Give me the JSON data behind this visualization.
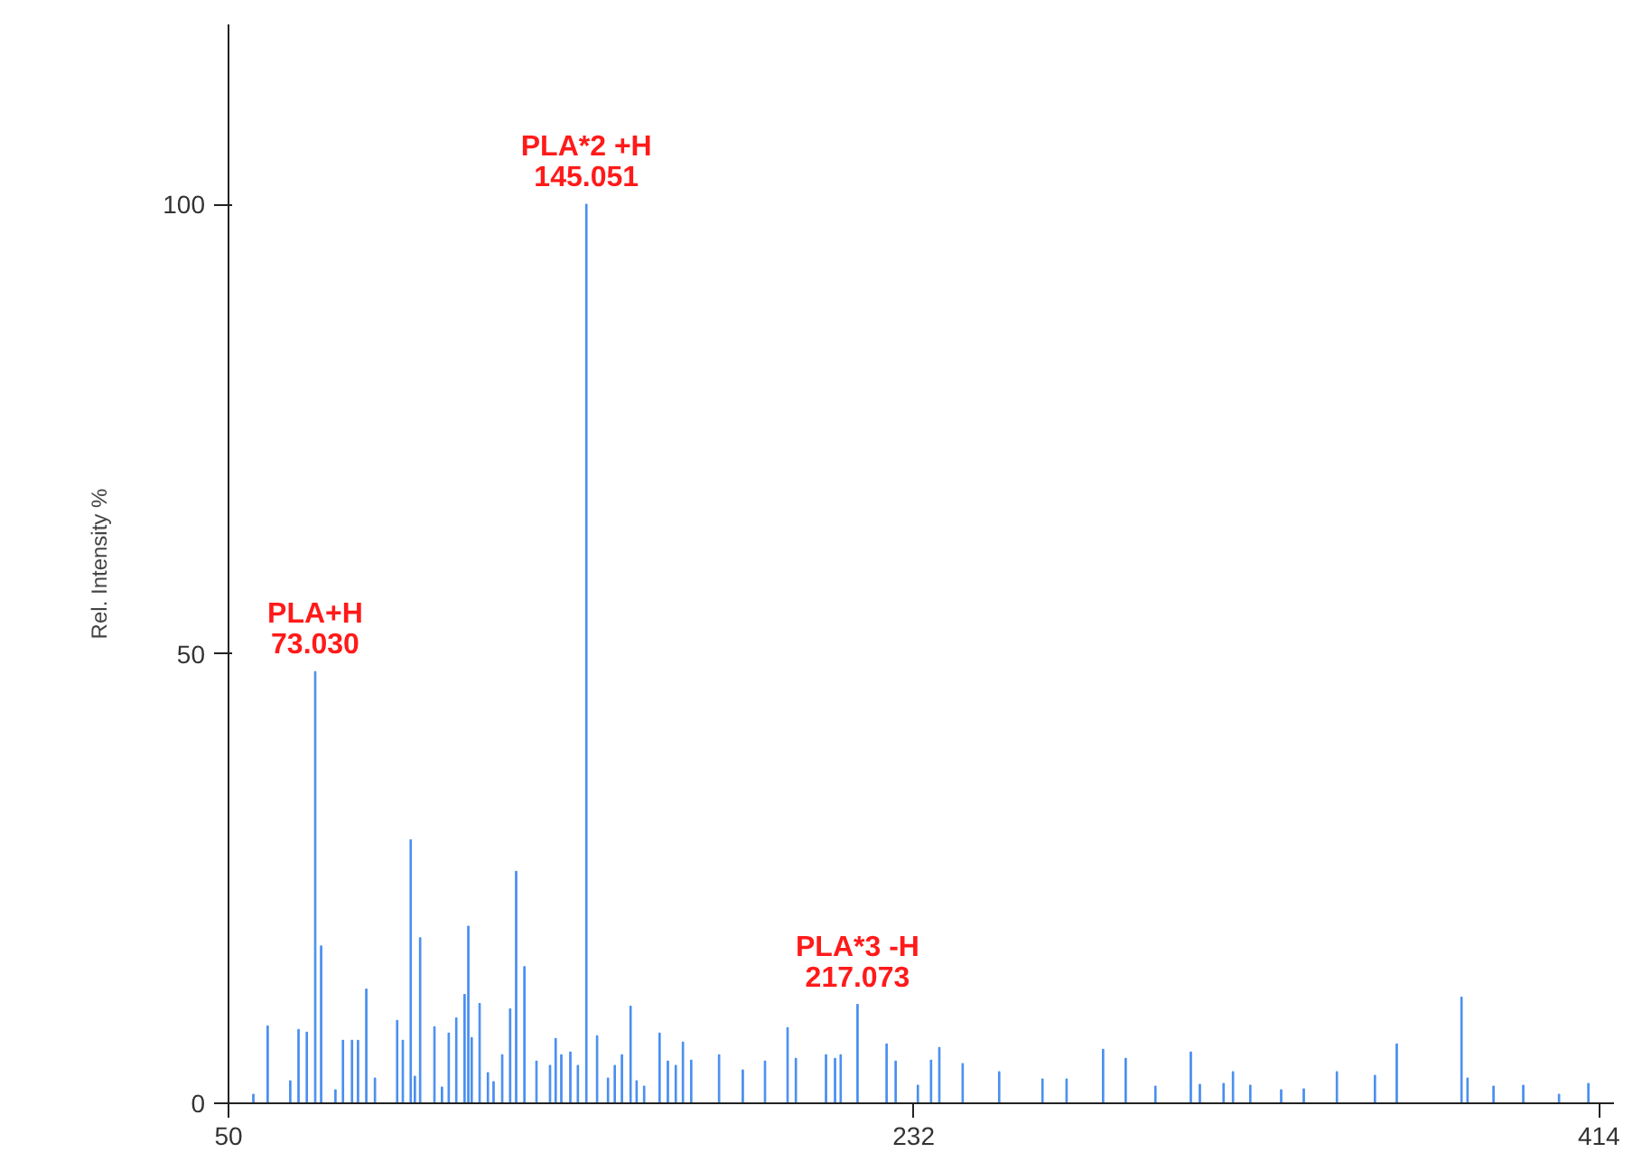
{
  "chart_data": {
    "type": "bar",
    "ylabel": "Rel. Intensity %",
    "color": "#4a8ff0",
    "x": [
      56.6,
      60.4,
      66.4,
      68.6,
      70.8,
      73.03,
      74.6,
      78.4,
      80.4,
      82.8,
      84.4,
      86.6,
      88.9,
      94.8,
      96.3,
      98.4,
      99.5,
      100.9,
      104.7,
      106.7,
      108.5,
      110.5,
      112.7,
      113.7,
      114.6,
      116.7,
      118.9,
      120.4,
      122.7,
      124.8,
      126.4,
      128.6,
      131.8,
      135.4,
      136.9,
      138.4,
      140.8,
      142.8,
      145.051,
      147.9,
      150.8,
      152.6,
      154.5,
      156.8,
      158.4,
      160.4,
      164.5,
      166.7,
      168.8,
      170.7,
      172.9,
      180.3,
      186.6,
      192.5,
      198.5,
      200.7,
      208.7,
      211.1,
      212.6,
      217.073,
      224.8,
      227.2,
      233.1,
      236.6,
      238.8,
      245.0,
      254.7,
      266.2,
      272.6,
      282.3,
      288.3,
      296.2,
      305.6,
      308.0,
      314.3,
      316.8,
      321.4,
      329.6,
      335.6,
      344.4,
      354.5,
      360.3,
      377.5,
      379.1,
      386.0,
      393.9,
      403.4,
      411.2
    ],
    "values": [
      1,
      8.6,
      2.5,
      8.2,
      7.9,
      48,
      17.5,
      1.5,
      7,
      7,
      7,
      12.7,
      2.8,
      9.2,
      7,
      29.3,
      3,
      18.4,
      8.5,
      1.8,
      7.8,
      9.5,
      12.1,
      19.7,
      7.3,
      11.1,
      3.4,
      2.4,
      5.4,
      10.5,
      25.8,
      15.2,
      4.7,
      4.2,
      7.2,
      5.4,
      5.7,
      4.2,
      100,
      7.5,
      2.8,
      4.2,
      5.4,
      10.8,
      2.5,
      1.9,
      7.8,
      4.7,
      4.2,
      6.8,
      4.8,
      5.4,
      3.7,
      4.7,
      8.4,
      5,
      5.4,
      5,
      5.4,
      11,
      6.6,
      4.7,
      2,
      4.8,
      6.2,
      4.4,
      3.5,
      2.7,
      2.7,
      6,
      5,
      1.9,
      5.7,
      2.1,
      2.2,
      3.5,
      2,
      1.5,
      1.6,
      3.5,
      3.1,
      6.6,
      11.8,
      2.8,
      1.9,
      2,
      1,
      2.2
    ],
    "xlim": [
      50,
      418
    ],
    "xticks": [
      50,
      232,
      414
    ],
    "ylim": [
      0,
      120
    ],
    "yticks": [
      0,
      50,
      100
    ],
    "grid": false,
    "annotations": [
      {
        "text": "PLA+H\n73.030",
        "x": 73.03,
        "y": 48
      },
      {
        "text": "PLA*2 +H\n145.051",
        "x": 145.051,
        "y": 100
      },
      {
        "text": "PLA*3 -H\n217.073",
        "x": 217.073,
        "y": 11
      }
    ]
  }
}
